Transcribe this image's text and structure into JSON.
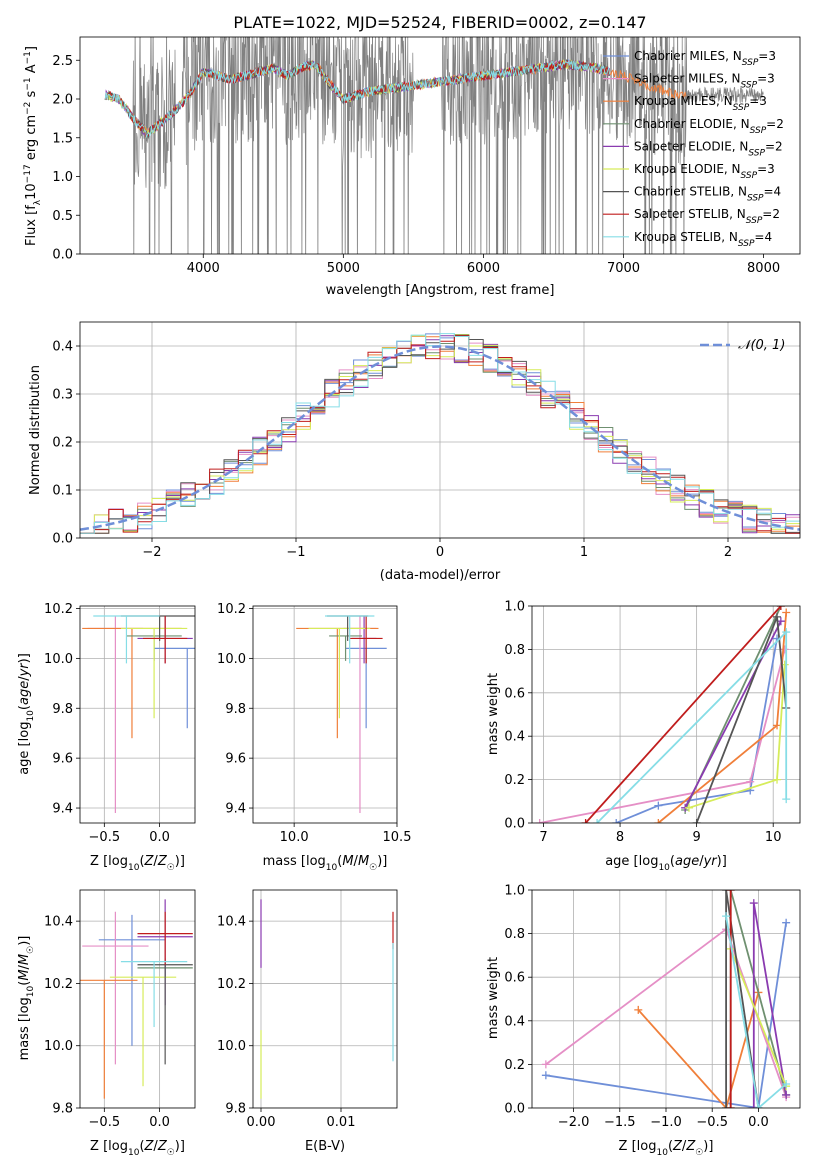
{
  "figure": {
    "title": "PLATE=1022, MJD=52524, FIBERID=0002, z=0.147"
  },
  "series_styles": [
    {
      "name": "Chabrier MILES, N_SSP=3",
      "color": "#6f8fd8"
    },
    {
      "name": "Salpeter MILES, N_SSP=3",
      "color": "#e58fc6"
    },
    {
      "name": "Kroupa MILES, N_SSP=3",
      "color": "#f07f3a"
    },
    {
      "name": "Chabrier ELODIE, N_SSP=2",
      "color": "#6f9070"
    },
    {
      "name": "Salpeter ELODIE, N_SSP=2",
      "color": "#8a3bb0"
    },
    {
      "name": "Kroupa ELODIE, N_SSP=3",
      "color": "#d6ec5a"
    },
    {
      "name": "Chabrier STELIB, N_SSP=4",
      "color": "#555555"
    },
    {
      "name": "Salpeter STELIB, N_SSP=2",
      "color": "#c01d1d"
    },
    {
      "name": "Kroupa STELIB, N_SSP=4",
      "color": "#86dde6"
    }
  ],
  "chart_data": [
    {
      "id": "spectrum",
      "type": "line",
      "xlabel": "wavelength [Angstrom, rest frame]",
      "ylabel": "Flux [f_λ 10^-17 erg cm^-2 s^-1 A^-1]",
      "xlim": [
        3120,
        8260
      ],
      "ylim": [
        0,
        2.8
      ],
      "xticks": [
        4000,
        5000,
        6000,
        7000,
        8000
      ],
      "yticks": [
        0.0,
        0.5,
        1.0,
        1.5,
        2.0,
        2.5
      ],
      "legend_position": "top-right",
      "legend": [
        "Chabrier MILES, N_SSP=3",
        "Salpeter MILES, N_SSP=3",
        "Kroupa MILES, N_SSP=3",
        "Chabrier ELODIE, N_SSP=2",
        "Salpeter ELODIE, N_SSP=2",
        "Kroupa ELODIE, N_SSP=3",
        "Chabrier STELIB, N_SSP=4",
        "Salpeter STELIB, N_SSP=2",
        "Kroupa STELIB, N_SSP=4"
      ],
      "data_continuum": {
        "x": [
          3300,
          3400,
          3500,
          3600,
          3700,
          3800,
          3900,
          4000,
          4100,
          4200,
          4300,
          4400,
          4500,
          4600,
          4700,
          4800,
          4900,
          5000,
          5200,
          5400,
          5600,
          5800,
          6000,
          6200,
          6400,
          6600,
          6800,
          7000,
          7200,
          7400
        ],
        "y": [
          2.05,
          2.0,
          1.75,
          1.55,
          1.7,
          1.85,
          2.05,
          2.35,
          2.3,
          2.25,
          2.3,
          2.35,
          2.4,
          2.3,
          2.4,
          2.45,
          2.2,
          2.0,
          2.1,
          2.15,
          2.2,
          2.25,
          2.3,
          2.35,
          2.4,
          2.45,
          2.4,
          2.3,
          2.15,
          2.05
        ]
      }
    },
    {
      "id": "residuals",
      "type": "bar",
      "xlabel": "(data-model)/error",
      "ylabel": "Normed distribution",
      "xlim": [
        -2.5,
        2.5
      ],
      "ylim": [
        0,
        0.45
      ],
      "xticks": [
        -2,
        -1,
        0,
        1,
        2
      ],
      "yticks": [
        0.0,
        0.1,
        0.2,
        0.3,
        0.4
      ],
      "grid": true,
      "legend_position": "top-right",
      "legend": [
        "𝒩(0, 1)"
      ],
      "bin_width": 0.1,
      "bin_start": -2.5,
      "gaussian": {
        "mean": 0,
        "sigma": 1
      }
    },
    {
      "id": "age_vs_Z",
      "type": "scatter",
      "xlabel": "Z [log10(Z/Z☉)]",
      "ylabel": "age  [log10(age/yr)]",
      "xlim": [
        -0.72,
        0.32
      ],
      "ylim": [
        9.34,
        10.21
      ],
      "xticks": [
        -0.5,
        0.0
      ],
      "yticks": [
        9.4,
        9.6,
        9.8,
        10.0,
        10.2
      ],
      "grid": true,
      "points": [
        {
          "series": 0,
          "x": 0.25,
          "y": 10.04,
          "xerr": 0.3,
          "yerr": [
            0.32,
            0.0
          ]
        },
        {
          "series": 1,
          "x": -0.4,
          "y": 10.12,
          "xerr": 0.25,
          "yerr": [
            0.74,
            0.05
          ]
        },
        {
          "series": 2,
          "x": -0.25,
          "y": 10.12,
          "xerr": 0.45,
          "yerr": [
            0.44,
            0.0
          ]
        },
        {
          "series": 3,
          "x": -0.05,
          "y": 10.09,
          "xerr": 0.25,
          "yerr": [
            0.1,
            0.0
          ]
        },
        {
          "series": 4,
          "x": 0.05,
          "y": 10.08,
          "xerr": 0.25,
          "yerr": [
            0.1,
            0.09
          ]
        },
        {
          "series": 5,
          "x": -0.05,
          "y": 10.12,
          "xerr": 0.3,
          "yerr": [
            0.36,
            0.0
          ]
        },
        {
          "series": 6,
          "x": 0.0,
          "y": 10.17,
          "xerr": 0.35,
          "yerr": [
            0.1,
            0.0
          ]
        },
        {
          "series": 7,
          "x": 0.05,
          "y": 10.08,
          "xerr": 0.2,
          "yerr": [
            0.1,
            0.09
          ]
        },
        {
          "series": 8,
          "x": -0.3,
          "y": 10.17,
          "xerr": 0.3,
          "yerr": [
            0.19,
            0.0
          ]
        }
      ]
    },
    {
      "id": "age_vs_mass",
      "type": "scatter",
      "xlabel": "mass [log10(M/M☉)]",
      "ylabel": "",
      "xlim": [
        9.8,
        10.5
      ],
      "ylim": [
        9.34,
        10.21
      ],
      "xticks": [
        10.0,
        10.5
      ],
      "yticks": [
        9.4,
        9.6,
        9.8,
        10.0,
        10.2
      ],
      "grid": true,
      "points": [
        {
          "series": 0,
          "x": 10.35,
          "y": 10.04,
          "xerr": 0.1,
          "yerr": [
            0.32,
            0.0
          ]
        },
        {
          "series": 1,
          "x": 10.32,
          "y": 10.12,
          "xerr": 0.08,
          "yerr": [
            0.74,
            0.05
          ]
        },
        {
          "series": 2,
          "x": 10.21,
          "y": 10.12,
          "xerr": 0.2,
          "yerr": [
            0.44,
            0.0
          ]
        },
        {
          "series": 3,
          "x": 10.25,
          "y": 10.09,
          "xerr": 0.08,
          "yerr": [
            0.1,
            0.0
          ]
        },
        {
          "series": 4,
          "x": 10.34,
          "y": 10.08,
          "xerr": 0.06,
          "yerr": [
            0.1,
            0.09
          ]
        },
        {
          "series": 5,
          "x": 10.22,
          "y": 10.12,
          "xerr": 0.15,
          "yerr": [
            0.36,
            0.0
          ]
        },
        {
          "series": 6,
          "x": 10.26,
          "y": 10.17,
          "xerr": 0.1,
          "yerr": [
            0.1,
            0.0
          ]
        },
        {
          "series": 7,
          "x": 10.35,
          "y": 10.08,
          "xerr": 0.08,
          "yerr": [
            0.1,
            0.09
          ]
        },
        {
          "series": 8,
          "x": 10.27,
          "y": 10.17,
          "xerr": 0.12,
          "yerr": [
            0.19,
            0.0
          ]
        }
      ]
    },
    {
      "id": "cumweight_vs_age",
      "type": "line",
      "xlabel": "age  [log10(age/yr)]",
      "ylabel": "mass weight",
      "xlim": [
        6.85,
        10.35
      ],
      "ylim": [
        0,
        1.0
      ],
      "xticks": [
        7,
        8,
        9,
        10
      ],
      "yticks": [
        0.0,
        0.2,
        0.4,
        0.6,
        0.8,
        1.0
      ],
      "grid": true,
      "series": [
        {
          "series": 0,
          "x": [
            7.95,
            8.5,
            9.7,
            10.05
          ],
          "y": [
            0.0,
            0.08,
            0.15,
            0.85
          ]
        },
        {
          "series": 1,
          "x": [
            6.95,
            9.7,
            10.15
          ],
          "y": [
            0.0,
            0.19,
            0.8
          ]
        },
        {
          "series": 2,
          "x": [
            8.5,
            10.05,
            10.17
          ],
          "y": [
            0.0,
            0.45,
            0.97
          ]
        },
        {
          "series": 3,
          "x": [
            8.85,
            10.1
          ],
          "y": [
            0.06,
            1.0
          ]
        },
        {
          "series": 4,
          "x": [
            8.85,
            10.1
          ],
          "y": [
            0.07,
            0.93
          ]
        },
        {
          "series": 5,
          "x": [
            8.9,
            10.05,
            10.15
          ],
          "y": [
            0.07,
            0.2,
            0.73
          ]
        },
        {
          "series": 6,
          "x": [
            9.0,
            10.05,
            10.17
          ],
          "y": [
            0.0,
            0.95,
            0.53
          ]
        },
        {
          "series": 7,
          "x": [
            7.55,
            10.1
          ],
          "y": [
            0.0,
            1.0
          ]
        },
        {
          "series": 8,
          "x": [
            7.7,
            10.17,
            10.17
          ],
          "y": [
            0.0,
            0.88,
            0.11
          ]
        }
      ]
    },
    {
      "id": "mass_vs_Z",
      "type": "scatter",
      "xlabel": "Z [log10(Z/Z☉)]",
      "ylabel": "mass [log10(M/M☉)]",
      "xlim": [
        -0.72,
        0.32
      ],
      "ylim": [
        9.8,
        10.5
      ],
      "xticks": [
        -0.5,
        0.0
      ],
      "yticks": [
        9.8,
        10.0,
        10.2,
        10.4
      ],
      "grid": true,
      "points": [
        {
          "series": 0,
          "x": -0.25,
          "y": 10.34,
          "xerr": 0.3,
          "yerr": [
            0.34,
            0.08
          ]
        },
        {
          "series": 1,
          "x": -0.4,
          "y": 10.32,
          "xerr": 0.3,
          "yerr": [
            0.38,
            0.11
          ]
        },
        {
          "series": 2,
          "x": -0.5,
          "y": 10.21,
          "xerr": 0.3,
          "yerr": [
            0.38,
            0.0
          ]
        },
        {
          "series": 3,
          "x": 0.05,
          "y": 10.25,
          "xerr": 0.25,
          "yerr": [
            0.03,
            0.03
          ]
        },
        {
          "series": 4,
          "x": 0.05,
          "y": 10.35,
          "xerr": 0.25,
          "yerr": [
            0.22,
            0.12
          ]
        },
        {
          "series": 5,
          "x": -0.15,
          "y": 10.22,
          "xerr": 0.3,
          "yerr": [
            0.35,
            0.0
          ]
        },
        {
          "series": 6,
          "x": 0.05,
          "y": 10.26,
          "xerr": 0.25,
          "yerr": [
            0.32,
            0.0
          ]
        },
        {
          "series": 7,
          "x": 0.05,
          "y": 10.36,
          "xerr": 0.25,
          "yerr": [
            0.1,
            0.07
          ]
        },
        {
          "series": 8,
          "x": -0.05,
          "y": 10.27,
          "xerr": 0.3,
          "yerr": [
            0.21,
            0.0
          ]
        }
      ]
    },
    {
      "id": "mass_vs_ebv",
      "type": "scatter",
      "xlabel": "E(B-V)",
      "ylabel": "",
      "xlim": [
        -0.001,
        0.017
      ],
      "ylim": [
        9.8,
        10.5
      ],
      "xticks": [
        0.0,
        0.01
      ],
      "yticks": [
        9.8,
        10.0,
        10.2,
        10.4
      ],
      "grid": true,
      "points": [
        {
          "series": 4,
          "x": 0.0,
          "y": 10.35,
          "xerr": 0,
          "yerr": [
            0.1,
            0.12
          ]
        },
        {
          "series": 5,
          "x": 0.0,
          "y": 10.05,
          "xerr": 0,
          "yerr": [
            0.22,
            0.0
          ]
        },
        {
          "series": 7,
          "x": 0.0165,
          "y": 10.36,
          "xerr": 0,
          "yerr": [
            0.05,
            0.07
          ]
        },
        {
          "series": 8,
          "x": 0.0165,
          "y": 10.15,
          "xerr": 0,
          "yerr": [
            0.2,
            0.18
          ]
        }
      ]
    },
    {
      "id": "cumweight_vs_Z",
      "type": "line",
      "xlabel": "Z [log10(Z/Z☉)]",
      "ylabel": "mass weight",
      "xlim": [
        -2.45,
        0.45
      ],
      "ylim": [
        0,
        1.0
      ],
      "xticks": [
        -2.0,
        -1.5,
        -1.0,
        -0.5,
        0.0
      ],
      "yticks": [
        0.0,
        0.2,
        0.4,
        0.6,
        0.8,
        1.0
      ],
      "grid": true,
      "series": [
        {
          "series": 0,
          "x": [
            -2.3,
            0.0,
            0.3
          ],
          "y": [
            0.15,
            0.0,
            0.85
          ]
        },
        {
          "series": 1,
          "x": [
            -2.3,
            -0.35,
            0.3
          ],
          "y": [
            0.2,
            0.82,
            0.05
          ]
        },
        {
          "series": 2,
          "x": [
            -1.3,
            -0.35,
            0.0
          ],
          "y": [
            0.45,
            0.0,
            0.53
          ]
        },
        {
          "series": 3,
          "x": [
            -0.3,
            -0.3,
            0.3
          ],
          "y": [
            0.0,
            1.0,
            0.06
          ]
        },
        {
          "series": 4,
          "x": [
            -0.05,
            -0.05,
            0.3
          ],
          "y": [
            0.0,
            0.94,
            0.06
          ]
        },
        {
          "series": 5,
          "x": [
            -0.3,
            0.3
          ],
          "y": [
            0.73,
            0.1
          ]
        },
        {
          "series": 6,
          "x": [
            -0.35,
            -0.35,
            0.0
          ],
          "y": [
            0.0,
            1.0,
            0.0
          ]
        },
        {
          "series": 7,
          "x": [
            -0.3,
            -0.3
          ],
          "y": [
            0.0,
            1.0
          ]
        },
        {
          "series": 8,
          "x": [
            -0.35,
            0.0,
            0.3
          ],
          "y": [
            0.88,
            0.0,
            0.11
          ]
        }
      ]
    }
  ]
}
